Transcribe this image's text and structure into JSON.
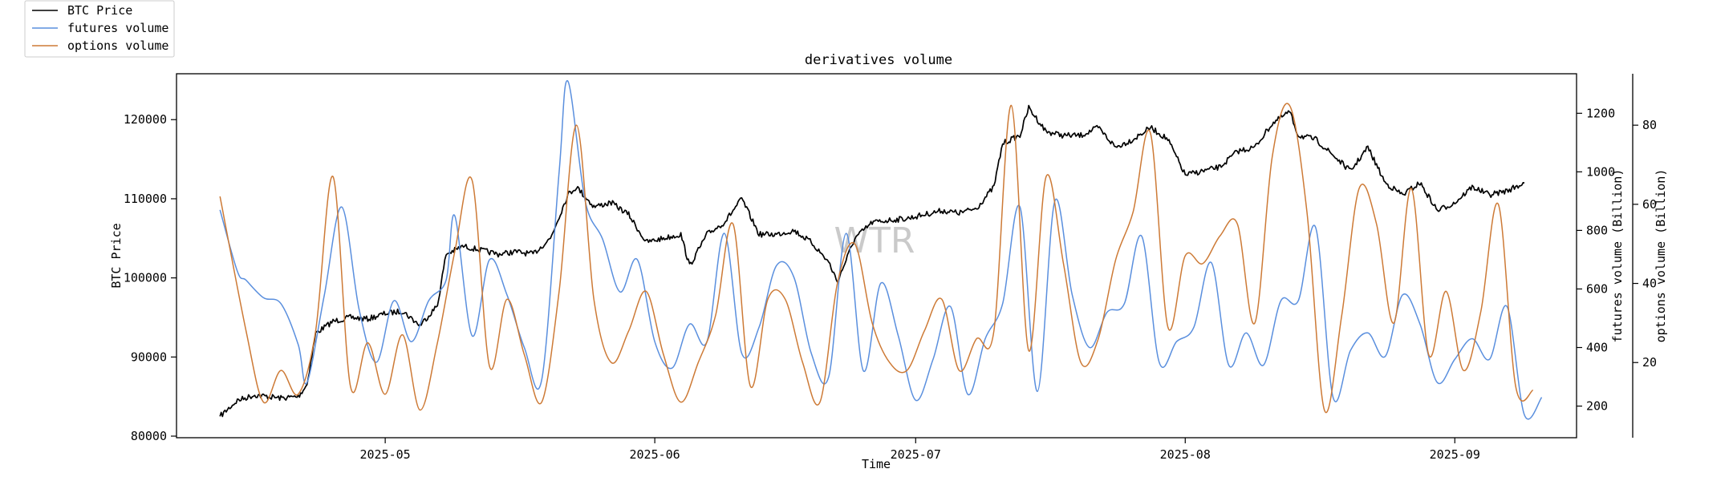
{
  "chart_data": {
    "type": "line",
    "title": "derivatives volume",
    "xlabel": "Time",
    "watermark": "WTR",
    "x_range": [
      "2025-04-07",
      "2025-09-15"
    ],
    "x_ticks": [
      "2025-05",
      "2025-06",
      "2025-07",
      "2025-08",
      "2025-09"
    ],
    "x_tick_dates": [
      "2025-05-01",
      "2025-06-01",
      "2025-07-01",
      "2025-08-01",
      "2025-09-01"
    ],
    "axes": {
      "left": {
        "label": "BTC Price",
        "range": [
          79800,
          125800
        ],
        "ticks": [
          80000,
          90000,
          100000,
          110000,
          120000
        ]
      },
      "right_futures": {
        "label": "futures volume (Billion)",
        "range": [
          92,
          1335
        ],
        "ticks": [
          200,
          400,
          600,
          800,
          1000,
          1200
        ]
      },
      "right_options": {
        "label": "options volume (Billion)",
        "range": [
          1,
          93
        ],
        "ticks": [
          20,
          40,
          60,
          80
        ]
      }
    },
    "legend": {
      "placement": "top-left outside",
      "entries": [
        {
          "label": "BTC Price",
          "color": "#000000"
        },
        {
          "label": "futures volume",
          "color": "#5a8fde"
        },
        {
          "label": "options volume",
          "color": "#cd7a36"
        }
      ]
    },
    "series": [
      {
        "name": "BTC Price",
        "axis": "left",
        "color": "#000000",
        "points": [
          [
            "2025-04-12",
            82500
          ],
          [
            "2025-04-14",
            84500
          ],
          [
            "2025-04-16",
            85200
          ],
          [
            "2025-04-19",
            84800
          ],
          [
            "2025-04-21",
            85000
          ],
          [
            "2025-04-22",
            86500
          ],
          [
            "2025-04-23",
            93000
          ],
          [
            "2025-04-25",
            94500
          ],
          [
            "2025-04-27",
            95000
          ],
          [
            "2025-04-29",
            94800
          ],
          [
            "2025-05-01",
            95500
          ],
          [
            "2025-05-03",
            95800
          ],
          [
            "2025-05-05",
            94000
          ],
          [
            "2025-05-07",
            96500
          ],
          [
            "2025-05-08",
            103000
          ],
          [
            "2025-05-10",
            104000
          ],
          [
            "2025-05-12",
            103500
          ],
          [
            "2025-05-14",
            103000
          ],
          [
            "2025-05-16",
            103300
          ],
          [
            "2025-05-18",
            103000
          ],
          [
            "2025-05-20",
            105000
          ],
          [
            "2025-05-22",
            110500
          ],
          [
            "2025-05-23",
            111500
          ],
          [
            "2025-05-25",
            109000
          ],
          [
            "2025-05-27",
            109500
          ],
          [
            "2025-05-29",
            108000
          ],
          [
            "2025-05-31",
            104500
          ],
          [
            "2025-06-02",
            105000
          ],
          [
            "2025-06-04",
            105500
          ],
          [
            "2025-06-05",
            101500
          ],
          [
            "2025-06-07",
            105500
          ],
          [
            "2025-06-09",
            107000
          ],
          [
            "2025-06-11",
            110000
          ],
          [
            "2025-06-13",
            105500
          ],
          [
            "2025-06-15",
            105500
          ],
          [
            "2025-06-17",
            106000
          ],
          [
            "2025-06-19",
            104500
          ],
          [
            "2025-06-21",
            102000
          ],
          [
            "2025-06-22",
            99500
          ],
          [
            "2025-06-24",
            105000
          ],
          [
            "2025-06-26",
            107000
          ],
          [
            "2025-06-28",
            107300
          ],
          [
            "2025-06-30",
            107500
          ],
          [
            "2025-07-02",
            108000
          ],
          [
            "2025-07-04",
            108500
          ],
          [
            "2025-07-06",
            108200
          ],
          [
            "2025-07-08",
            108800
          ],
          [
            "2025-07-10",
            111500
          ],
          [
            "2025-07-11",
            117000
          ],
          [
            "2025-07-13",
            118000
          ],
          [
            "2025-07-14",
            121500
          ],
          [
            "2025-07-16",
            118500
          ],
          [
            "2025-07-18",
            118000
          ],
          [
            "2025-07-20",
            118000
          ],
          [
            "2025-07-22",
            119000
          ],
          [
            "2025-07-24",
            116500
          ],
          [
            "2025-07-26",
            117500
          ],
          [
            "2025-07-28",
            119000
          ],
          [
            "2025-07-30",
            117500
          ],
          [
            "2025-08-01",
            113000
          ],
          [
            "2025-08-03",
            113500
          ],
          [
            "2025-08-05",
            114000
          ],
          [
            "2025-08-07",
            116000
          ],
          [
            "2025-08-09",
            116500
          ],
          [
            "2025-08-11",
            119500
          ],
          [
            "2025-08-13",
            121000
          ],
          [
            "2025-08-14",
            118000
          ],
          [
            "2025-08-16",
            117500
          ],
          [
            "2025-08-18",
            115500
          ],
          [
            "2025-08-20",
            113500
          ],
          [
            "2025-08-22",
            116500
          ],
          [
            "2025-08-24",
            112000
          ],
          [
            "2025-08-26",
            110500
          ],
          [
            "2025-08-28",
            112000
          ],
          [
            "2025-08-30",
            108500
          ],
          [
            "2025-09-01",
            109500
          ],
          [
            "2025-09-03",
            111500
          ],
          [
            "2025-09-05",
            110500
          ],
          [
            "2025-09-07",
            111000
          ],
          [
            "2025-09-09",
            112000
          ]
        ]
      },
      {
        "name": "futures volume",
        "axis": "right_futures",
        "color": "#5a8fde",
        "points": [
          [
            "2025-04-12",
            870
          ],
          [
            "2025-04-14",
            660
          ],
          [
            "2025-04-15",
            630
          ],
          [
            "2025-04-17",
            570
          ],
          [
            "2025-04-19",
            550
          ],
          [
            "2025-04-21",
            410
          ],
          [
            "2025-04-22",
            280
          ],
          [
            "2025-04-24",
            580
          ],
          [
            "2025-04-26",
            880
          ],
          [
            "2025-04-28",
            530
          ],
          [
            "2025-04-30",
            350
          ],
          [
            "2025-05-02",
            560
          ],
          [
            "2025-05-04",
            420
          ],
          [
            "2025-05-06",
            560
          ],
          [
            "2025-05-08",
            630
          ],
          [
            "2025-05-09",
            850
          ],
          [
            "2025-05-11",
            440
          ],
          [
            "2025-05-13",
            700
          ],
          [
            "2025-05-15",
            580
          ],
          [
            "2025-05-17",
            400
          ],
          [
            "2025-05-19",
            290
          ],
          [
            "2025-05-21",
            1000
          ],
          [
            "2025-05-22",
            1310
          ],
          [
            "2025-05-24",
            900
          ],
          [
            "2025-05-26",
            770
          ],
          [
            "2025-05-28",
            590
          ],
          [
            "2025-05-30",
            700
          ],
          [
            "2025-06-01",
            420
          ],
          [
            "2025-06-03",
            330
          ],
          [
            "2025-06-05",
            480
          ],
          [
            "2025-06-07",
            420
          ],
          [
            "2025-06-09",
            790
          ],
          [
            "2025-06-11",
            380
          ],
          [
            "2025-06-13",
            470
          ],
          [
            "2025-06-15",
            680
          ],
          [
            "2025-06-17",
            640
          ],
          [
            "2025-06-19",
            380
          ],
          [
            "2025-06-21",
            300
          ],
          [
            "2025-06-23",
            790
          ],
          [
            "2025-06-25",
            320
          ],
          [
            "2025-06-27",
            620
          ],
          [
            "2025-06-29",
            440
          ],
          [
            "2025-07-01",
            220
          ],
          [
            "2025-07-03",
            360
          ],
          [
            "2025-07-05",
            540
          ],
          [
            "2025-07-07",
            240
          ],
          [
            "2025-07-09",
            430
          ],
          [
            "2025-07-11",
            550
          ],
          [
            "2025-07-13",
            880
          ],
          [
            "2025-07-15",
            250
          ],
          [
            "2025-07-17",
            900
          ],
          [
            "2025-07-19",
            580
          ],
          [
            "2025-07-21",
            400
          ],
          [
            "2025-07-23",
            520
          ],
          [
            "2025-07-25",
            550
          ],
          [
            "2025-07-27",
            780
          ],
          [
            "2025-07-29",
            350
          ],
          [
            "2025-07-31",
            420
          ],
          [
            "2025-08-02",
            470
          ],
          [
            "2025-08-04",
            690
          ],
          [
            "2025-08-06",
            340
          ],
          [
            "2025-08-08",
            450
          ],
          [
            "2025-08-10",
            340
          ],
          [
            "2025-08-12",
            560
          ],
          [
            "2025-08-14",
            560
          ],
          [
            "2025-08-16",
            810
          ],
          [
            "2025-08-18",
            230
          ],
          [
            "2025-08-20",
            390
          ],
          [
            "2025-08-22",
            450
          ],
          [
            "2025-08-24",
            370
          ],
          [
            "2025-08-26",
            580
          ],
          [
            "2025-08-28",
            480
          ],
          [
            "2025-08-30",
            280
          ],
          [
            "2025-09-01",
            360
          ],
          [
            "2025-09-03",
            430
          ],
          [
            "2025-09-05",
            360
          ],
          [
            "2025-09-07",
            540
          ],
          [
            "2025-09-09",
            170
          ],
          [
            "2025-09-11",
            230
          ]
        ]
      },
      {
        "name": "options volume",
        "axis": "right_options",
        "color": "#cd7a36",
        "points": [
          [
            "2025-04-12",
            62
          ],
          [
            "2025-04-15",
            28
          ],
          [
            "2025-04-17",
            10
          ],
          [
            "2025-04-19",
            18
          ],
          [
            "2025-04-21",
            12
          ],
          [
            "2025-04-23",
            28
          ],
          [
            "2025-04-25",
            67
          ],
          [
            "2025-04-27",
            14
          ],
          [
            "2025-04-29",
            25
          ],
          [
            "2025-05-01",
            12
          ],
          [
            "2025-05-03",
            27
          ],
          [
            "2025-05-05",
            8
          ],
          [
            "2025-05-07",
            25
          ],
          [
            "2025-05-09",
            48
          ],
          [
            "2025-05-11",
            66
          ],
          [
            "2025-05-13",
            19
          ],
          [
            "2025-05-15",
            36
          ],
          [
            "2025-05-17",
            22
          ],
          [
            "2025-05-19",
            10
          ],
          [
            "2025-05-21",
            38
          ],
          [
            "2025-05-23",
            80
          ],
          [
            "2025-05-25",
            36
          ],
          [
            "2025-05-27",
            20
          ],
          [
            "2025-05-29",
            28
          ],
          [
            "2025-05-31",
            38
          ],
          [
            "2025-06-02",
            22
          ],
          [
            "2025-06-04",
            10
          ],
          [
            "2025-06-06",
            20
          ],
          [
            "2025-06-08",
            32
          ],
          [
            "2025-06-10",
            55
          ],
          [
            "2025-06-12",
            14
          ],
          [
            "2025-06-14",
            36
          ],
          [
            "2025-06-16",
            36
          ],
          [
            "2025-06-18",
            20
          ],
          [
            "2025-06-20",
            10
          ],
          [
            "2025-06-22",
            40
          ],
          [
            "2025-06-24",
            50
          ],
          [
            "2025-06-26",
            30
          ],
          [
            "2025-06-28",
            20
          ],
          [
            "2025-06-30",
            18
          ],
          [
            "2025-07-02",
            28
          ],
          [
            "2025-07-04",
            36
          ],
          [
            "2025-07-06",
            18
          ],
          [
            "2025-07-08",
            26
          ],
          [
            "2025-07-10",
            28
          ],
          [
            "2025-07-12",
            85
          ],
          [
            "2025-07-14",
            23
          ],
          [
            "2025-07-16",
            67
          ],
          [
            "2025-07-18",
            45
          ],
          [
            "2025-07-20",
            20
          ],
          [
            "2025-07-22",
            26
          ],
          [
            "2025-07-24",
            46
          ],
          [
            "2025-07-26",
            58
          ],
          [
            "2025-07-28",
            78
          ],
          [
            "2025-07-30",
            29
          ],
          [
            "2025-08-01",
            47
          ],
          [
            "2025-08-03",
            45
          ],
          [
            "2025-08-05",
            52
          ],
          [
            "2025-08-07",
            55
          ],
          [
            "2025-08-09",
            30
          ],
          [
            "2025-08-11",
            72
          ],
          [
            "2025-08-13",
            85
          ],
          [
            "2025-08-15",
            58
          ],
          [
            "2025-08-17",
            8
          ],
          [
            "2025-08-19",
            32
          ],
          [
            "2025-08-21",
            64
          ],
          [
            "2025-08-23",
            55
          ],
          [
            "2025-08-25",
            30
          ],
          [
            "2025-08-27",
            64
          ],
          [
            "2025-08-29",
            22
          ],
          [
            "2025-08-31",
            38
          ],
          [
            "2025-09-02",
            18
          ],
          [
            "2025-09-04",
            33
          ],
          [
            "2025-09-06",
            60
          ],
          [
            "2025-09-08",
            14
          ],
          [
            "2025-09-10",
            13
          ]
        ]
      }
    ]
  }
}
